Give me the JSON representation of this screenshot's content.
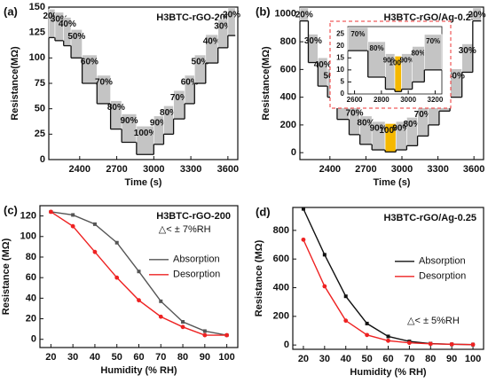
{
  "chart_data": [
    {
      "type": "step",
      "label": "(a)",
      "title": "H3BTC-rGO-200",
      "x_label": "Time (s)",
      "y_label": "Resistance(MΩ)",
      "xlim": [
        2150,
        3680
      ],
      "xticks": [
        2400,
        2700,
        3000,
        3300,
        3600
      ],
      "ylim": [
        0,
        150
      ],
      "yticks": [
        0,
        25,
        50,
        75,
        100,
        125,
        150
      ],
      "steps": [
        {
          "label": "20%",
          "start": 2150,
          "end": 2200,
          "value": 120
        },
        {
          "label": "30%",
          "start": 2200,
          "end": 2270,
          "value": 117
        },
        {
          "label": "40%",
          "start": 2270,
          "end": 2330,
          "value": 112
        },
        {
          "label": "50%",
          "start": 2330,
          "end": 2420,
          "value": 100
        },
        {
          "label": "60%",
          "start": 2420,
          "end": 2540,
          "value": 75
        },
        {
          "label": "70%",
          "start": 2540,
          "end": 2650,
          "value": 55
        },
        {
          "label": "80%",
          "start": 2650,
          "end": 2740,
          "value": 30
        },
        {
          "label": "90%",
          "start": 2740,
          "end": 2860,
          "value": 17
        },
        {
          "label": "100%",
          "start": 2860,
          "end": 3000,
          "value": 5
        },
        {
          "label": "90%",
          "start": 3000,
          "end": 3080,
          "value": 15
        },
        {
          "label": "80%",
          "start": 3080,
          "end": 3160,
          "value": 25
        },
        {
          "label": "70%",
          "start": 3160,
          "end": 3250,
          "value": 40
        },
        {
          "label": "60%",
          "start": 3250,
          "end": 3330,
          "value": 55
        },
        {
          "label": "50%",
          "start": 3330,
          "end": 3420,
          "value": 75
        },
        {
          "label": "40%",
          "start": 3420,
          "end": 3520,
          "value": 95
        },
        {
          "label": "30%",
          "start": 3520,
          "end": 3600,
          "value": 110
        },
        {
          "label": "20%",
          "start": 3600,
          "end": 3660,
          "value": 122
        }
      ]
    },
    {
      "type": "step",
      "label": "(b)",
      "title": "H3BTC-rGO/Ag-0.25",
      "x_label": "Time (s)",
      "y_label": "Resistance(MΩ)",
      "xlim": [
        2150,
        3680
      ],
      "xticks": [
        2400,
        2700,
        3000,
        3300,
        3600
      ],
      "ylim": [
        -50,
        1050
      ],
      "yticks": [
        0,
        200,
        400,
        600,
        800,
        1000
      ],
      "steps": [
        {
          "label": "20%",
          "start": 2150,
          "end": 2220,
          "value": 950
        },
        {
          "label": "30%",
          "start": 2220,
          "end": 2300,
          "value": 650
        },
        {
          "label": "40%",
          "start": 2300,
          "end": 2380,
          "value": 480
        },
        {
          "label": "50%",
          "start": 2380,
          "end": 2460,
          "value": 400
        },
        {
          "label": "60%",
          "start": 2460,
          "end": 2560,
          "value": 240
        },
        {
          "label": "70%",
          "start": 2560,
          "end": 2650,
          "value": 130
        },
        {
          "label": "80%",
          "start": 2650,
          "end": 2750,
          "value": 60
        },
        {
          "label": "90%",
          "start": 2750,
          "end": 2860,
          "value": 20
        },
        {
          "label": "100%",
          "start": 2860,
          "end": 2950,
          "value": 5,
          "color": "#f5b800"
        },
        {
          "label": "90%",
          "start": 2950,
          "end": 3040,
          "value": 20
        },
        {
          "label": "80%",
          "start": 3040,
          "end": 3130,
          "value": 50
        },
        {
          "label": "70%",
          "start": 3130,
          "end": 3220,
          "value": 120
        },
        {
          "label": "60%",
          "start": 3220,
          "end": 3310,
          "value": 200
        },
        {
          "label": "50%",
          "start": 3310,
          "end": 3400,
          "value": 300
        },
        {
          "label": "40%",
          "start": 3400,
          "end": 3500,
          "value": 400
        },
        {
          "label": "30%",
          "start": 3500,
          "end": 3590,
          "value": 580
        },
        {
          "label": "20%",
          "start": 3590,
          "end": 3660,
          "value": 950
        }
      ]
    },
    {
      "type": "step",
      "xlim": [
        2550,
        3250
      ],
      "xticks": [
        2600,
        2800,
        3000,
        3200
      ],
      "ylim": [
        0,
        28
      ],
      "yticks": [
        0,
        5,
        10,
        15,
        20,
        25
      ],
      "steps": [
        {
          "label": "70%",
          "start": 2550,
          "end": 2700,
          "value": 18
        },
        {
          "label": "80%",
          "start": 2700,
          "end": 2830,
          "value": 7
        },
        {
          "label": "90%",
          "start": 2830,
          "end": 2900,
          "value": 2
        },
        {
          "label": "100%",
          "start": 2900,
          "end": 2950,
          "value": 1,
          "color": "#f5b800"
        },
        {
          "label": "90%",
          "start": 2950,
          "end": 3030,
          "value": 2
        },
        {
          "label": "80%",
          "start": 3030,
          "end": 3120,
          "value": 5
        },
        {
          "label": "70%",
          "start": 3120,
          "end": 3250,
          "value": 10
        }
      ]
    },
    {
      "type": "line",
      "label": "(c)",
      "title": "H3BTC-rGO-200",
      "annotation": "△< ± 7%RH",
      "x_label": "Humidity (% RH)",
      "y_label": "Resistance (MΩ)",
      "x": [
        20,
        30,
        40,
        50,
        60,
        70,
        80,
        90,
        100
      ],
      "xlim": [
        15,
        105
      ],
      "xticks": [
        20,
        30,
        40,
        50,
        60,
        70,
        80,
        90,
        100
      ],
      "ylim": [
        -8,
        130
      ],
      "yticks": [
        0,
        20,
        40,
        60,
        80,
        100,
        120
      ],
      "series": [
        {
          "name": "Absorption",
          "color": "#555555",
          "values": [
            124,
            121,
            112,
            94,
            66,
            37,
            17,
            8,
            4
          ]
        },
        {
          "name": "Desorption",
          "color": "#ee2222",
          "values": [
            124,
            110,
            85,
            60,
            38,
            22,
            12,
            4,
            4
          ]
        }
      ]
    },
    {
      "type": "line",
      "label": "(d)",
      "title": "H3BTC-rGO/Ag-0.25",
      "annotation": "△< ± 5%RH",
      "x_label": "Humidity (% RH)",
      "y_label": "Resistance (MΩ)",
      "x": [
        20,
        30,
        40,
        50,
        60,
        70,
        80,
        90,
        100
      ],
      "xlim": [
        15,
        105
      ],
      "xticks": [
        20,
        30,
        40,
        50,
        60,
        70,
        80,
        90,
        100
      ],
      "ylim": [
        -30,
        960
      ],
      "yticks": [
        0,
        200,
        400,
        600,
        800
      ],
      "series": [
        {
          "name": "Absorption",
          "color": "#111111",
          "values": [
            950,
            630,
            340,
            150,
            60,
            25,
            10,
            5,
            3
          ]
        },
        {
          "name": "Desorption",
          "color": "#ee2222",
          "values": [
            735,
            410,
            170,
            70,
            30,
            15,
            8,
            5,
            3
          ]
        }
      ]
    }
  ]
}
